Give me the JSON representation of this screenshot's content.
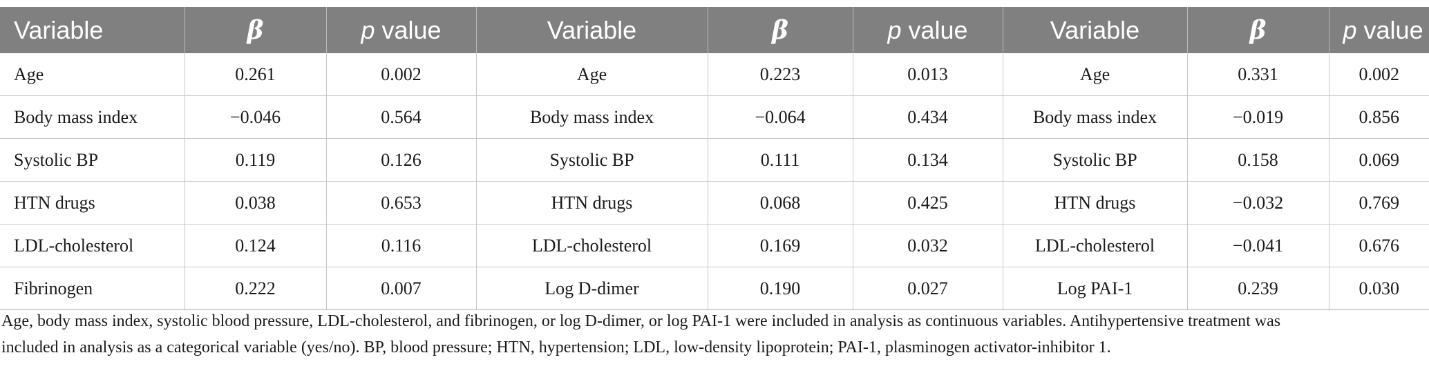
{
  "table": {
    "headers": [
      {
        "kind": "text",
        "text": "Variable"
      },
      {
        "kind": "beta",
        "text": "β"
      },
      {
        "kind": "p",
        "italic": "p",
        "rest": " value"
      },
      {
        "kind": "text",
        "text": "Variable"
      },
      {
        "kind": "beta",
        "text": "β"
      },
      {
        "kind": "p",
        "italic": "p",
        "rest": " value"
      },
      {
        "kind": "text",
        "text": "Variable"
      },
      {
        "kind": "beta",
        "text": "β"
      },
      {
        "kind": "p",
        "italic": "p",
        "rest": " value"
      }
    ],
    "rows": [
      [
        "Age",
        "0.261",
        "0.002",
        "Age",
        "0.223",
        "0.013",
        "Age",
        "0.331",
        "0.002"
      ],
      [
        "Body mass index",
        "−0.046",
        "0.564",
        "Body mass index",
        "−0.064",
        "0.434",
        "Body mass index",
        "−0.019",
        "0.856"
      ],
      [
        "Systolic BP",
        "0.119",
        "0.126",
        "Systolic BP",
        "0.111",
        "0.134",
        "Systolic BP",
        "0.158",
        "0.069"
      ],
      [
        "HTN drugs",
        "0.038",
        "0.653",
        "HTN drugs",
        "0.068",
        "0.425",
        "HTN drugs",
        "−0.032",
        "0.769"
      ],
      [
        "LDL-cholesterol",
        "0.124",
        "0.116",
        "LDL-cholesterol",
        "0.169",
        "0.032",
        "LDL-cholesterol",
        "−0.041",
        "0.676"
      ],
      [
        "Fibrinogen",
        "0.222",
        "0.007",
        "Log D-dimer",
        "0.190",
        "0.027",
        "Log PAI-1",
        "0.239",
        "0.030"
      ]
    ]
  },
  "footnote": {
    "line1": "Age, body mass index, systolic blood pressure, LDL-cholesterol, and fibrinogen, or log D-dimer, or log PAI-1 were included in analysis as continuous variables. Antihypertensive treatment was",
    "line2": "included in analysis as a categorical variable (yes/no). BP, blood pressure; HTN, hypertension; LDL, low-density lipoprotein; PAI-1, plasminogen activator-inhibitor 1."
  }
}
